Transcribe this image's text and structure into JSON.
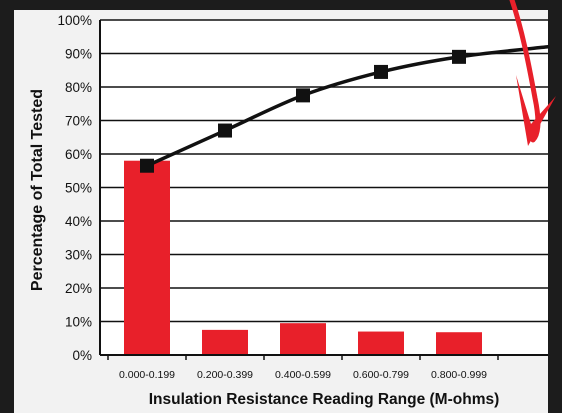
{
  "chart_data": {
    "type": "bar",
    "categories": [
      "0.000-0.199",
      "0.200-0.399",
      "0.400-0.599",
      "0.600-0.799",
      "0.800-0.999"
    ],
    "series": [
      {
        "type": "bar",
        "values": [
          58,
          7.5,
          9.5,
          7,
          6.8
        ]
      },
      {
        "type": "line",
        "values": [
          56.5,
          67,
          77.5,
          84.5,
          89
        ]
      }
    ],
    "line_end_value": 92,
    "title": "",
    "xlabel": "Insulation Resistance Reading Range (M-ohms)",
    "ylabel": "Percentage of Total Tested",
    "ylim": [
      0,
      100
    ],
    "yticks": [
      "0%",
      "10%",
      "20%",
      "30%",
      "40%",
      "50%",
      "60%",
      "70%",
      "80%",
      "90%",
      "100%"
    ],
    "grid": true,
    "legend": "none",
    "colors": {
      "background": "#1c1c1c",
      "plot_background": "#ffffff",
      "bar": "#e8202a",
      "line": "#111111",
      "marker": "#111111",
      "arrow": "#e8202a",
      "grid": "#111111",
      "text": "#111111"
    }
  }
}
